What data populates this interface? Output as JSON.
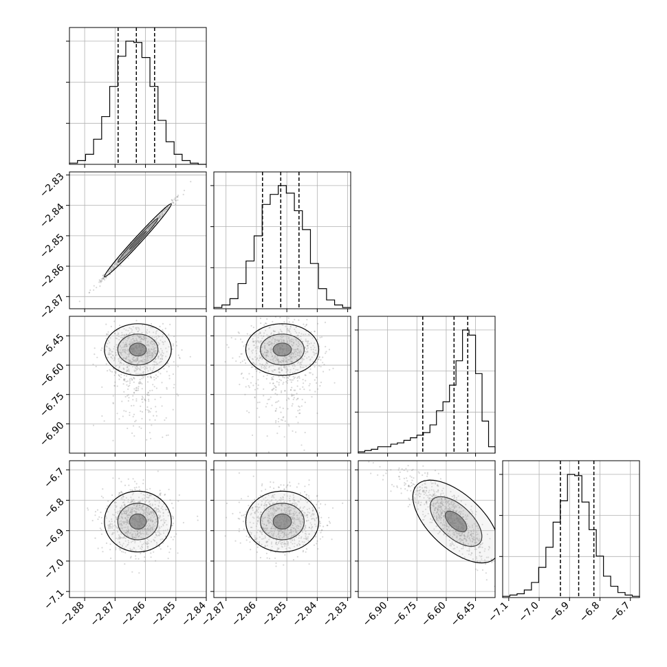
{
  "chart_data": {
    "type": "corner",
    "parameters": 4,
    "grid": true,
    "colors": {
      "line": "#000000",
      "grid": "#b0b0b0",
      "scatter": "#8c8c8c",
      "frame": "#000000"
    },
    "histograms": [
      {
        "param": 0,
        "range": [
          -2.885,
          -2.84
        ],
        "ticks": [
          -2.88,
          -2.87,
          -2.86,
          -2.85,
          -2.84
        ],
        "tick_labels": [
          "−2.88",
          "−2.87",
          "−2.86",
          "−2.85",
          "−2.84"
        ],
        "quantiles": [
          -2.869,
          -2.863,
          -2.857
        ],
        "counts": [
          1,
          3,
          8,
          20,
          38,
          62,
          86,
          98,
          97,
          85,
          62,
          35,
          18,
          8,
          3,
          1,
          0
        ]
      },
      {
        "param": 1,
        "range": [
          -2.874,
          -2.829
        ],
        "ticks": [
          -2.87,
          -2.86,
          -2.85,
          -2.84,
          -2.83
        ],
        "tick_labels": [
          "−2.87",
          "−2.86",
          "−2.85",
          "−2.84",
          "−2.83"
        ],
        "quantiles": [
          -2.858,
          -2.852,
          -2.846
        ],
        "counts": [
          1,
          3,
          8,
          20,
          38,
          58,
          83,
          91,
          98,
          92,
          78,
          63,
          36,
          16,
          7,
          3,
          1
        ]
      },
      {
        "param": 2,
        "range": [
          -7.05,
          -6.35
        ],
        "ticks": [
          -6.9,
          -6.75,
          -6.6,
          -6.45
        ],
        "tick_labels": [
          "−6.90",
          "−6.75",
          "−6.60",
          "−6.45"
        ],
        "quantiles": [
          -6.72,
          -6.56,
          -6.49
        ],
        "counts": [
          1,
          2,
          3,
          5,
          5,
          7,
          8,
          10,
          12,
          14,
          16,
          22,
          33,
          40,
          53,
          72,
          96,
          92,
          62,
          25,
          5
        ]
      },
      {
        "param": 3,
        "range": [
          -7.12,
          -6.67
        ],
        "ticks": [
          -7.1,
          -7.0,
          -6.9,
          -6.8,
          -6.7
        ],
        "tick_labels": [
          "−7.1",
          "−7.0",
          "−6.9",
          "−6.8",
          "−6.7"
        ],
        "quantiles": [
          -6.93,
          -6.87,
          -6.82
        ],
        "counts": [
          1,
          2,
          3,
          6,
          12,
          24,
          40,
          60,
          77,
          98,
          97,
          76,
          54,
          33,
          17,
          9,
          4,
          2,
          1
        ]
      }
    ],
    "pairs": [
      {
        "x_param": 0,
        "y_param": 1,
        "x_mean": -2.8625,
        "y_mean": -2.8515,
        "x_sd": 0.0055,
        "y_sd": 0.006,
        "corr": 0.995
      },
      {
        "x_param": 0,
        "y_param": 2,
        "x_mean": -2.8625,
        "y_mean": -6.52,
        "x_sd": 0.0055,
        "y_sd": 0.11,
        "corr": 0.0
      },
      {
        "x_param": 1,
        "y_param": 2,
        "x_mean": -2.8515,
        "y_mean": -6.52,
        "x_sd": 0.006,
        "y_sd": 0.11,
        "corr": 0.0
      },
      {
        "x_param": 0,
        "y_param": 3,
        "x_mean": -2.8625,
        "y_mean": -6.87,
        "x_sd": 0.0055,
        "y_sd": 0.05,
        "corr": 0.0
      },
      {
        "x_param": 1,
        "y_param": 3,
        "x_mean": -2.8515,
        "y_mean": -6.87,
        "x_sd": 0.006,
        "y_sd": 0.05,
        "corr": 0.0
      },
      {
        "x_param": 2,
        "y_param": 3,
        "x_mean": -6.55,
        "y_mean": -6.87,
        "x_sd": 0.1,
        "y_sd": 0.06,
        "corr": -0.75
      }
    ],
    "y_axis_labels": {
      "row1": [
        "−2.83",
        "−2.84",
        "−2.85",
        "−2.86",
        "−2.87"
      ],
      "row2": [
        "−6.45",
        "−6.60",
        "−6.75",
        "−6.90"
      ],
      "row3": [
        "−6.7",
        "−6.8",
        "−6.9",
        "−7.0",
        "−7.1"
      ]
    }
  }
}
